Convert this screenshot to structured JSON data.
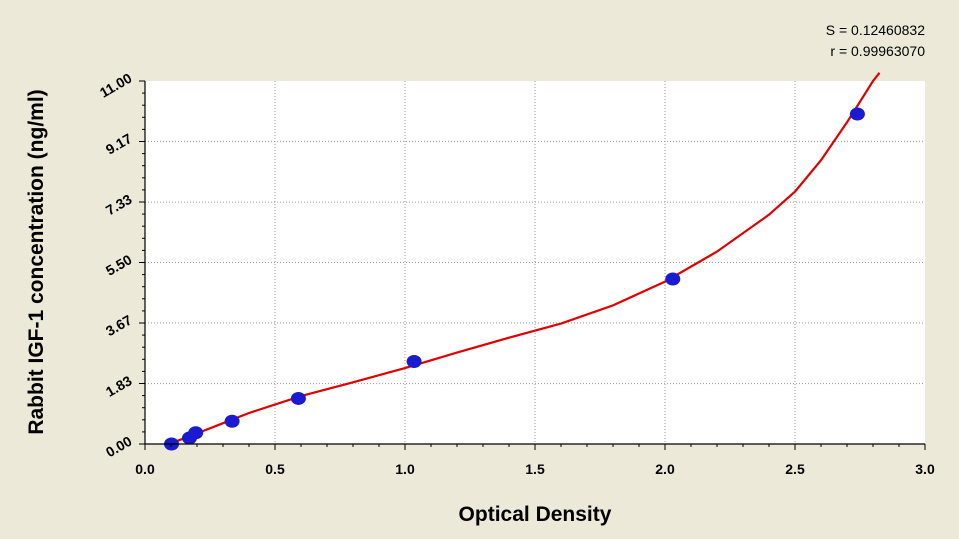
{
  "chart_data": {
    "type": "scatter",
    "title": "",
    "xlabel": "Optical Density",
    "ylabel": "Rabbit IGF-1 concentration (ng/ml)",
    "xlim": [
      0.0,
      3.0
    ],
    "ylim": [
      0.0,
      11.0
    ],
    "x_ticks": [
      "0.0",
      "0.5",
      "1.0",
      "1.5",
      "2.0",
      "2.5",
      "3.0"
    ],
    "y_ticks": [
      "0.00",
      "1.83",
      "3.67",
      "5.50",
      "7.33",
      "9.17",
      "11.00"
    ],
    "grid": true,
    "stats": {
      "s_label": "S = 0.12460832",
      "r_label": "r = 0.99963070"
    },
    "points": [
      {
        "x": 0.102,
        "y": 0.0
      },
      {
        "x": 0.171,
        "y": 0.18
      },
      {
        "x": 0.195,
        "y": 0.34
      },
      {
        "x": 0.335,
        "y": 0.69
      },
      {
        "x": 0.59,
        "y": 1.38
      },
      {
        "x": 1.035,
        "y": 2.5
      },
      {
        "x": 2.03,
        "y": 5.0
      },
      {
        "x": 2.74,
        "y": 10.0
      }
    ],
    "fit_curve": [
      {
        "x": 0.1,
        "y": 0.02
      },
      {
        "x": 0.2,
        "y": 0.32
      },
      {
        "x": 0.3,
        "y": 0.63
      },
      {
        "x": 0.4,
        "y": 0.94
      },
      {
        "x": 0.6,
        "y": 1.45
      },
      {
        "x": 0.8,
        "y": 1.87
      },
      {
        "x": 1.0,
        "y": 2.3
      },
      {
        "x": 1.2,
        "y": 2.77
      },
      {
        "x": 1.4,
        "y": 3.22
      },
      {
        "x": 1.6,
        "y": 3.65
      },
      {
        "x": 1.8,
        "y": 4.2
      },
      {
        "x": 2.0,
        "y": 4.92
      },
      {
        "x": 2.2,
        "y": 5.83
      },
      {
        "x": 2.4,
        "y": 6.95
      },
      {
        "x": 2.5,
        "y": 7.65
      },
      {
        "x": 2.6,
        "y": 8.6
      },
      {
        "x": 2.7,
        "y": 9.75
      },
      {
        "x": 2.8,
        "y": 11.0
      },
      {
        "x": 2.825,
        "y": 11.25
      }
    ],
    "colors": {
      "background": "#ece9d8",
      "plot_area": "#ffffff",
      "grid": "#9a9a9a",
      "curve": "#e00000",
      "marker": "#1a1ad0"
    }
  }
}
